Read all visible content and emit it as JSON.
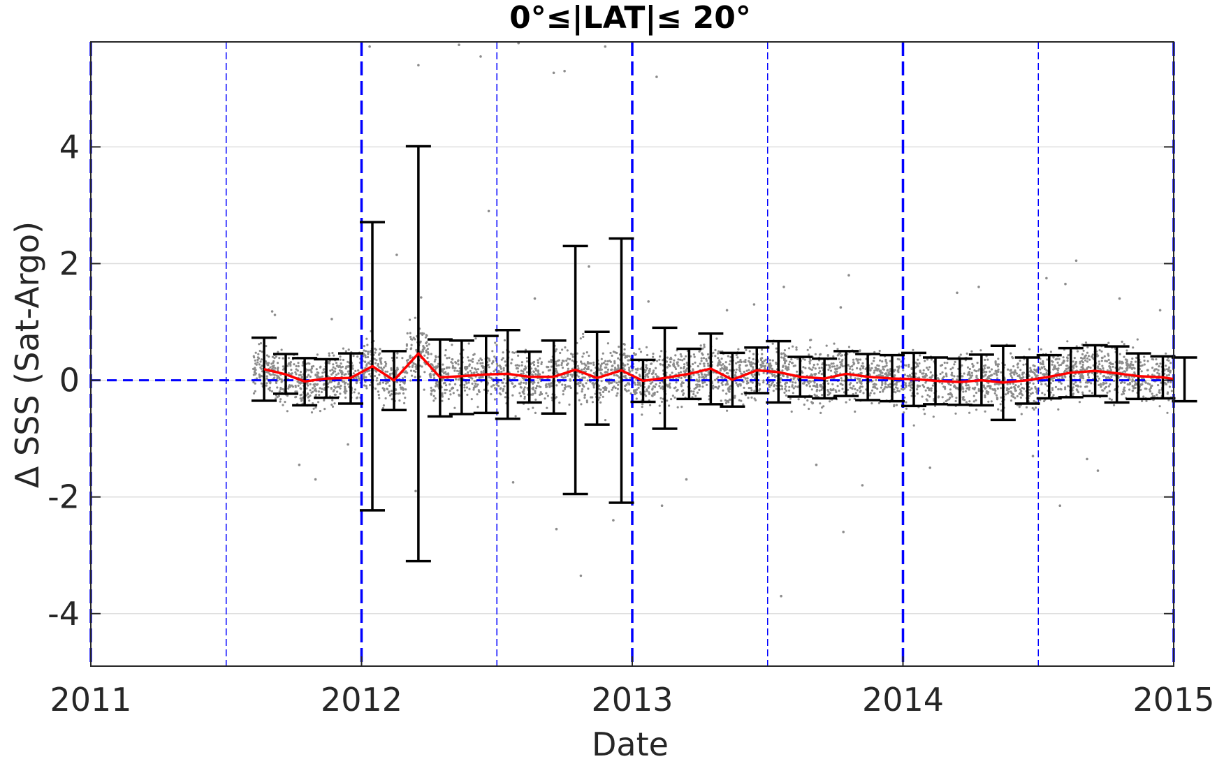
{
  "chart_data": {
    "type": "scatter",
    "title": "0°≤|LAT|≤ 20°",
    "xlabel": "Date",
    "ylabel": "Δ SSS (Sat-Argo)",
    "x_tick_labels": [
      "2011",
      "2012",
      "2013",
      "2014",
      "2015"
    ],
    "y_tick_labels": [
      "-4",
      "-2",
      "0",
      "2",
      "4"
    ],
    "xlim": [
      2011.0,
      2015.0
    ],
    "ylim": [
      -4.9,
      5.8
    ],
    "grid": true,
    "year_lines": [
      2011,
      2012,
      2013,
      2014,
      2015
    ],
    "half_year_lines": [
      2011.5,
      2012.5,
      2013.5,
      2014.5
    ],
    "zero_line": 0,
    "colors": {
      "scatter": "#8c8c8c",
      "mean_line": "#ff0000",
      "error_bar": "#000000",
      "reference_lines": "#0000ff",
      "grid": "#dedede",
      "axes": "#262626"
    },
    "series": [
      {
        "kind": "error_bars_with_mean",
        "points": [
          {
            "x": 2011.64,
            "mean": 0.19,
            "lower": -0.35,
            "upper": 0.73
          },
          {
            "x": 2011.72,
            "mean": 0.1,
            "lower": -0.23,
            "upper": 0.45
          },
          {
            "x": 2011.79,
            "mean": -0.02,
            "lower": -0.43,
            "upper": 0.38
          },
          {
            "x": 2011.87,
            "mean": 0.03,
            "lower": -0.3,
            "upper": 0.36
          },
          {
            "x": 2011.96,
            "mean": 0.04,
            "lower": -0.4,
            "upper": 0.46
          },
          {
            "x": 2012.04,
            "mean": 0.24,
            "lower": -2.23,
            "upper": 2.71
          },
          {
            "x": 2012.12,
            "mean": 0.0,
            "lower": -0.51,
            "upper": 0.5
          },
          {
            "x": 2012.21,
            "mean": 0.46,
            "lower": -3.1,
            "upper": 4.01
          },
          {
            "x": 2012.29,
            "mean": 0.05,
            "lower": -0.62,
            "upper": 0.7
          },
          {
            "x": 2012.37,
            "mean": 0.07,
            "lower": -0.58,
            "upper": 0.68
          },
          {
            "x": 2012.46,
            "mean": 0.1,
            "lower": -0.56,
            "upper": 0.76
          },
          {
            "x": 2012.54,
            "mean": 0.11,
            "lower": -0.66,
            "upper": 0.86
          },
          {
            "x": 2012.62,
            "mean": 0.06,
            "lower": -0.38,
            "upper": 0.49
          },
          {
            "x": 2012.71,
            "mean": 0.06,
            "lower": -0.57,
            "upper": 0.68
          },
          {
            "x": 2012.79,
            "mean": 0.18,
            "lower": -1.95,
            "upper": 2.3
          },
          {
            "x": 2012.87,
            "mean": 0.04,
            "lower": -0.76,
            "upper": 0.83
          },
          {
            "x": 2012.96,
            "mean": 0.17,
            "lower": -2.1,
            "upper": 2.43
          },
          {
            "x": 2013.04,
            "mean": -0.01,
            "lower": -0.37,
            "upper": 0.35
          },
          {
            "x": 2013.12,
            "mean": 0.04,
            "lower": -0.83,
            "upper": 0.9
          },
          {
            "x": 2013.21,
            "mean": 0.11,
            "lower": -0.32,
            "upper": 0.54
          },
          {
            "x": 2013.29,
            "mean": 0.2,
            "lower": -0.41,
            "upper": 0.8
          },
          {
            "x": 2013.37,
            "mean": 0.01,
            "lower": -0.45,
            "upper": 0.47
          },
          {
            "x": 2013.46,
            "mean": 0.17,
            "lower": -0.22,
            "upper": 0.56
          },
          {
            "x": 2013.54,
            "mean": 0.14,
            "lower": -0.38,
            "upper": 0.67
          },
          {
            "x": 2013.62,
            "mean": 0.06,
            "lower": -0.28,
            "upper": 0.4
          },
          {
            "x": 2013.71,
            "mean": 0.03,
            "lower": -0.31,
            "upper": 0.37
          },
          {
            "x": 2013.79,
            "mean": 0.11,
            "lower": -0.27,
            "upper": 0.5
          },
          {
            "x": 2013.87,
            "mean": 0.06,
            "lower": -0.34,
            "upper": 0.45
          },
          {
            "x": 2013.96,
            "mean": 0.03,
            "lower": -0.36,
            "upper": 0.43
          },
          {
            "x": 2014.04,
            "mean": 0.02,
            "lower": -0.44,
            "upper": 0.47
          },
          {
            "x": 2014.12,
            "mean": -0.01,
            "lower": -0.41,
            "upper": 0.39
          },
          {
            "x": 2014.21,
            "mean": -0.03,
            "lower": -0.42,
            "upper": 0.37
          },
          {
            "x": 2014.29,
            "mean": 0.0,
            "lower": -0.43,
            "upper": 0.44
          },
          {
            "x": 2014.37,
            "mean": -0.04,
            "lower": -0.68,
            "upper": 0.59
          },
          {
            "x": 2014.46,
            "mean": 0.0,
            "lower": -0.4,
            "upper": 0.39
          },
          {
            "x": 2014.54,
            "mean": 0.06,
            "lower": -0.31,
            "upper": 0.43
          },
          {
            "x": 2014.62,
            "mean": 0.13,
            "lower": -0.29,
            "upper": 0.55
          },
          {
            "x": 2014.71,
            "mean": 0.16,
            "lower": -0.27,
            "upper": 0.6
          },
          {
            "x": 2014.79,
            "mean": 0.12,
            "lower": -0.38,
            "upper": 0.58
          },
          {
            "x": 2014.87,
            "mean": 0.07,
            "lower": -0.32,
            "upper": 0.46
          },
          {
            "x": 2014.96,
            "mean": 0.05,
            "lower": -0.31,
            "upper": 0.41
          },
          {
            "x": 2015.04,
            "mean": 0.02,
            "lower": -0.36,
            "upper": 0.39
          }
        ]
      },
      {
        "kind": "scatter_cloud",
        "x_range": [
          2011.6,
          2015.0
        ],
        "approx_count": 4200,
        "typical_spread": 0.45,
        "outliers": [
          {
            "x": 2011.67,
            "y": 1.18
          },
          {
            "x": 2011.68,
            "y": 1.12
          },
          {
            "x": 2011.89,
            "y": 1.05
          },
          {
            "x": 2011.83,
            "y": -1.7
          },
          {
            "x": 2011.77,
            "y": -1.45
          },
          {
            "x": 2011.95,
            "y": -1.1
          },
          {
            "x": 2012.03,
            "y": 5.72
          },
          {
            "x": 2012.13,
            "y": 2.15
          },
          {
            "x": 2012.21,
            "y": 5.4
          },
          {
            "x": 2012.22,
            "y": 1.42
          },
          {
            "x": 2012.2,
            "y": -1.9
          },
          {
            "x": 2012.36,
            "y": 5.75
          },
          {
            "x": 2012.44,
            "y": 5.55
          },
          {
            "x": 2012.47,
            "y": 2.9
          },
          {
            "x": 2012.58,
            "y": 5.78
          },
          {
            "x": 2012.56,
            "y": -1.75
          },
          {
            "x": 2012.64,
            "y": 1.4
          },
          {
            "x": 2012.72,
            "y": -2.55
          },
          {
            "x": 2012.71,
            "y": 5.27
          },
          {
            "x": 2012.75,
            "y": 5.3
          },
          {
            "x": 2012.81,
            "y": -3.35
          },
          {
            "x": 2012.84,
            "y": 1.95
          },
          {
            "x": 2012.9,
            "y": 5.72
          },
          {
            "x": 2012.93,
            "y": -2.4
          },
          {
            "x": 2013.09,
            "y": 5.2
          },
          {
            "x": 2013.11,
            "y": -2.15
          },
          {
            "x": 2013.06,
            "y": 1.35
          },
          {
            "x": 2013.2,
            "y": -1.7
          },
          {
            "x": 2013.35,
            "y": 1.2
          },
          {
            "x": 2013.45,
            "y": 1.3
          },
          {
            "x": 2013.55,
            "y": -3.7
          },
          {
            "x": 2013.56,
            "y": 1.6
          },
          {
            "x": 2013.68,
            "y": -1.45
          },
          {
            "x": 2013.78,
            "y": -2.6
          },
          {
            "x": 2013.77,
            "y": 1.25
          },
          {
            "x": 2013.8,
            "y": 1.8
          },
          {
            "x": 2013.85,
            "y": -1.8
          },
          {
            "x": 2014.1,
            "y": -1.5
          },
          {
            "x": 2014.2,
            "y": 1.5
          },
          {
            "x": 2014.28,
            "y": 1.6
          },
          {
            "x": 2014.48,
            "y": -1.3
          },
          {
            "x": 2014.53,
            "y": 1.75
          },
          {
            "x": 2014.58,
            "y": -2.15
          },
          {
            "x": 2014.6,
            "y": 1.65
          },
          {
            "x": 2014.64,
            "y": 2.05
          },
          {
            "x": 2014.68,
            "y": -1.35
          },
          {
            "x": 2014.72,
            "y": -1.55
          },
          {
            "x": 2014.8,
            "y": 1.4
          },
          {
            "x": 2014.95,
            "y": 1.2
          }
        ]
      }
    ]
  }
}
